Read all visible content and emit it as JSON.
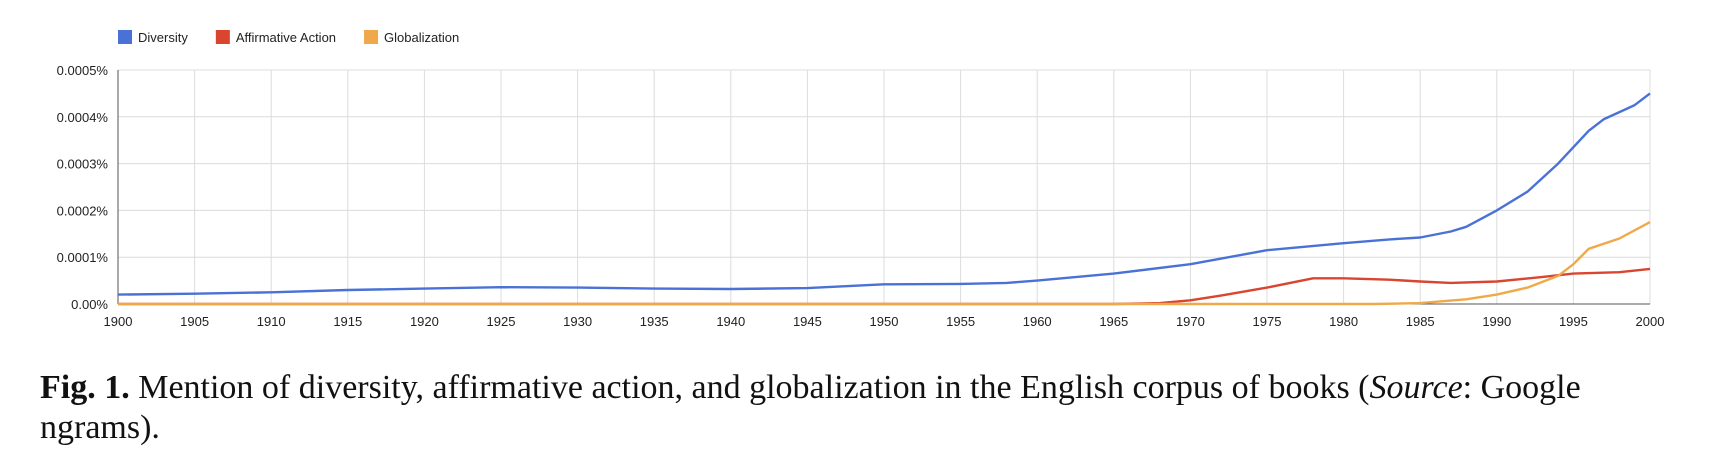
{
  "chart_data": {
    "type": "line",
    "title": "",
    "xlabel": "",
    "ylabel": "",
    "xlim": [
      1900,
      2000
    ],
    "ylim": [
      0,
      0.0005
    ],
    "x_ticks": [
      "1900",
      "1905",
      "1910",
      "1915",
      "1920",
      "1925",
      "1930",
      "1935",
      "1940",
      "1945",
      "1950",
      "1955",
      "1960",
      "1965",
      "1970",
      "1975",
      "1980",
      "1985",
      "1990",
      "1995",
      "2000"
    ],
    "y_ticks": [
      {
        "value": 0,
        "label": "0.00%"
      },
      {
        "value": 0.0001,
        "label": "0.0001%"
      },
      {
        "value": 0.0002,
        "label": "0.0002%"
      },
      {
        "value": 0.0003,
        "label": "0.0003%"
      },
      {
        "value": 0.0004,
        "label": "0.0004%"
      },
      {
        "value": 0.0005,
        "label": "0.0005%"
      }
    ],
    "grid": true,
    "legend_position": "top-left",
    "series": [
      {
        "name": "Diversity",
        "color": "#4a72d6",
        "points": [
          [
            1900,
            2e-05
          ],
          [
            1905,
            2.2e-05
          ],
          [
            1910,
            2.5e-05
          ],
          [
            1915,
            3e-05
          ],
          [
            1920,
            3.3e-05
          ],
          [
            1925,
            3.6e-05
          ],
          [
            1930,
            3.5e-05
          ],
          [
            1935,
            3.3e-05
          ],
          [
            1940,
            3.2e-05
          ],
          [
            1945,
            3.4e-05
          ],
          [
            1950,
            4.2e-05
          ],
          [
            1955,
            4.3e-05
          ],
          [
            1958,
            4.5e-05
          ],
          [
            1960,
            5e-05
          ],
          [
            1965,
            6.5e-05
          ],
          [
            1970,
            8.5e-05
          ],
          [
            1975,
            0.000115
          ],
          [
            1980,
            0.00013
          ],
          [
            1983,
            0.000138
          ],
          [
            1985,
            0.000142
          ],
          [
            1987,
            0.000155
          ],
          [
            1988,
            0.000165
          ],
          [
            1990,
            0.0002
          ],
          [
            1992,
            0.00024
          ],
          [
            1994,
            0.0003
          ],
          [
            1996,
            0.00037
          ],
          [
            1997,
            0.000395
          ],
          [
            1998,
            0.00041
          ],
          [
            1999,
            0.000425
          ],
          [
            2000,
            0.00045
          ]
        ]
      },
      {
        "name": "Affirmative Action",
        "color": "#d9452f",
        "points": [
          [
            1900,
            0
          ],
          [
            1965,
            0
          ],
          [
            1968,
            2e-06
          ],
          [
            1970,
            8e-06
          ],
          [
            1972,
            1.8e-05
          ],
          [
            1975,
            3.5e-05
          ],
          [
            1978,
            5.5e-05
          ],
          [
            1980,
            5.5e-05
          ],
          [
            1983,
            5.2e-05
          ],
          [
            1985,
            4.8e-05
          ],
          [
            1987,
            4.5e-05
          ],
          [
            1990,
            4.8e-05
          ],
          [
            1993,
            5.8e-05
          ],
          [
            1995,
            6.5e-05
          ],
          [
            1998,
            6.8e-05
          ],
          [
            2000,
            7.5e-05
          ]
        ]
      },
      {
        "name": "Globalization",
        "color": "#f0a94a",
        "points": [
          [
            1900,
            0
          ],
          [
            1982,
            0
          ],
          [
            1985,
            2e-06
          ],
          [
            1988,
            1e-05
          ],
          [
            1990,
            2e-05
          ],
          [
            1992,
            3.5e-05
          ],
          [
            1994,
            6e-05
          ],
          [
            1995,
            8.5e-05
          ],
          [
            1996,
            0.000118
          ],
          [
            1998,
            0.00014
          ],
          [
            2000,
            0.000175
          ]
        ]
      }
    ]
  },
  "caption": {
    "fig_label": "Fig. 1.",
    "text_1": " Mention of diversity, affirmative action, and globalization in the English corpus of books (",
    "source_word": "Source",
    "text_2": ": Google ngrams)."
  }
}
